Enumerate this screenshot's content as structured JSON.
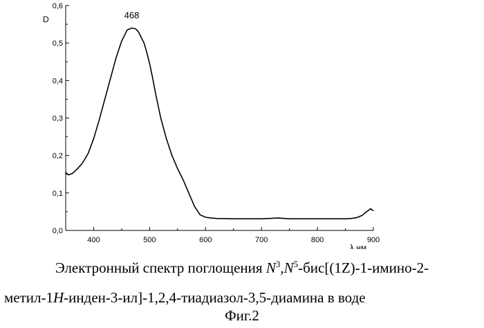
{
  "chart_data": {
    "type": "line",
    "title": "",
    "xlabel": "λ,нм",
    "ylabel": "D",
    "xlim": [
      350,
      900
    ],
    "ylim": [
      0.0,
      0.6
    ],
    "x_ticks": [
      400,
      500,
      600,
      700,
      800,
      900
    ],
    "y_ticks": [
      0.0,
      0.1,
      0.2,
      0.3,
      0.4,
      0.5,
      0.6
    ],
    "x_tick_labels": [
      "400",
      "500",
      "600",
      "700",
      "800",
      "900"
    ],
    "y_tick_labels": [
      "0,0",
      "0,1",
      "0,2",
      "0,3",
      "0,4",
      "0,5",
      "0,6"
    ],
    "grid": false,
    "annotations": [
      {
        "text": "468",
        "x": 468,
        "y": 0.555
      }
    ],
    "series": [
      {
        "color": "#000000",
        "x": [
          350,
          355,
          362,
          370,
          380,
          390,
          400,
          410,
          420,
          430,
          440,
          450,
          460,
          468,
          475,
          480,
          485,
          490,
          495,
          500,
          505,
          510,
          520,
          530,
          540,
          550,
          560,
          570,
          580,
          590,
          600,
          610,
          620,
          650,
          700,
          730,
          750,
          800,
          850,
          860,
          870,
          880,
          886,
          890,
          895,
          900
        ],
        "y": [
          0.155,
          0.148,
          0.152,
          0.163,
          0.18,
          0.205,
          0.245,
          0.295,
          0.35,
          0.405,
          0.46,
          0.505,
          0.535,
          0.54,
          0.538,
          0.53,
          0.515,
          0.5,
          0.475,
          0.445,
          0.41,
          0.37,
          0.3,
          0.245,
          0.2,
          0.165,
          0.135,
          0.1,
          0.065,
          0.042,
          0.035,
          0.033,
          0.032,
          0.031,
          0.031,
          0.033,
          0.031,
          0.031,
          0.031,
          0.032,
          0.034,
          0.04,
          0.048,
          0.052,
          0.058,
          0.052
        ]
      }
    ]
  },
  "caption": {
    "line1_a": "Электронный спектр поглощения ",
    "n_letter": "N",
    "sup_3": "3",
    "comma": ",",
    "sup_5": "5",
    "line1_b": "-бис[(1Z)-1-имино-2-",
    "line2_a": "метил-1",
    "h_letter": "H",
    "line2_b": "-инден-3-ил]-1,2,4-тиадиазол-3,5-диамина в воде"
  },
  "figure_label": "Фиг.2"
}
